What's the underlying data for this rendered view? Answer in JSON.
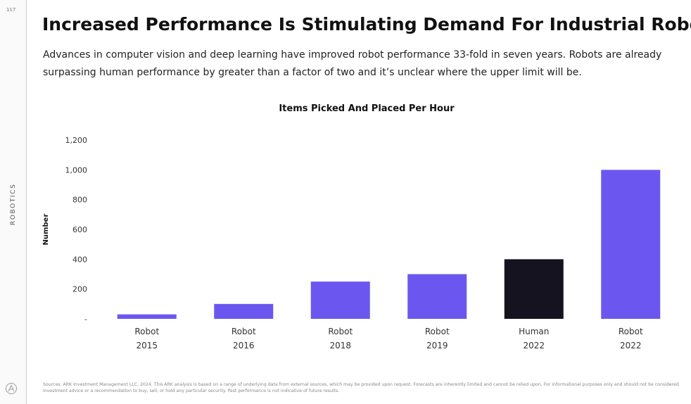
{
  "page": {
    "number": "117",
    "section": "ROBOTICS",
    "title": "Increased Performance Is Stimulating Demand For Industrial Robots",
    "subtitle": "Advances in computer vision and deep learning have improved robot performance 33-fold in seven years. Robots are already surpassing human performance by greater than a factor of two and it’s unclear where the upper limit will be.",
    "footnote": "Sources: ARK Investment Management LLC, 2024. This ARK analysis is based on a range of underlying data from external sources, which may be provided upon request. Forecasts are inherently limited and cannot be relied upon. For informational purposes only and should not be considered investment advice or a recommendation to buy, sell, or hold any particular security. Past performance is not indicative of future results."
  },
  "chart_data": {
    "type": "bar",
    "title": "Items Picked And Placed Per Hour",
    "ylabel": "Number",
    "xlabel": "",
    "ylim": [
      0,
      1200
    ],
    "yticks": [
      0,
      200,
      400,
      600,
      800,
      1000,
      1200
    ],
    "ytick_labels": [
      "-",
      "200",
      "400",
      "600",
      "800",
      "1,000",
      "1,200"
    ],
    "categories": [
      [
        "Robot",
        "2015"
      ],
      [
        "Robot",
        "2016"
      ],
      [
        "Robot",
        "2018"
      ],
      [
        "Robot",
        "2019"
      ],
      [
        "Human",
        "2022"
      ],
      [
        "Robot",
        "2022"
      ]
    ],
    "values": [
      30,
      100,
      250,
      300,
      400,
      1000
    ],
    "bar_colors": [
      "#6b57f0",
      "#6b57f0",
      "#6b57f0",
      "#6b57f0",
      "#15131f",
      "#6b57f0"
    ],
    "grid": false,
    "legend": "none"
  },
  "colors": {
    "robot": "#6b57f0",
    "human": "#15131f"
  }
}
